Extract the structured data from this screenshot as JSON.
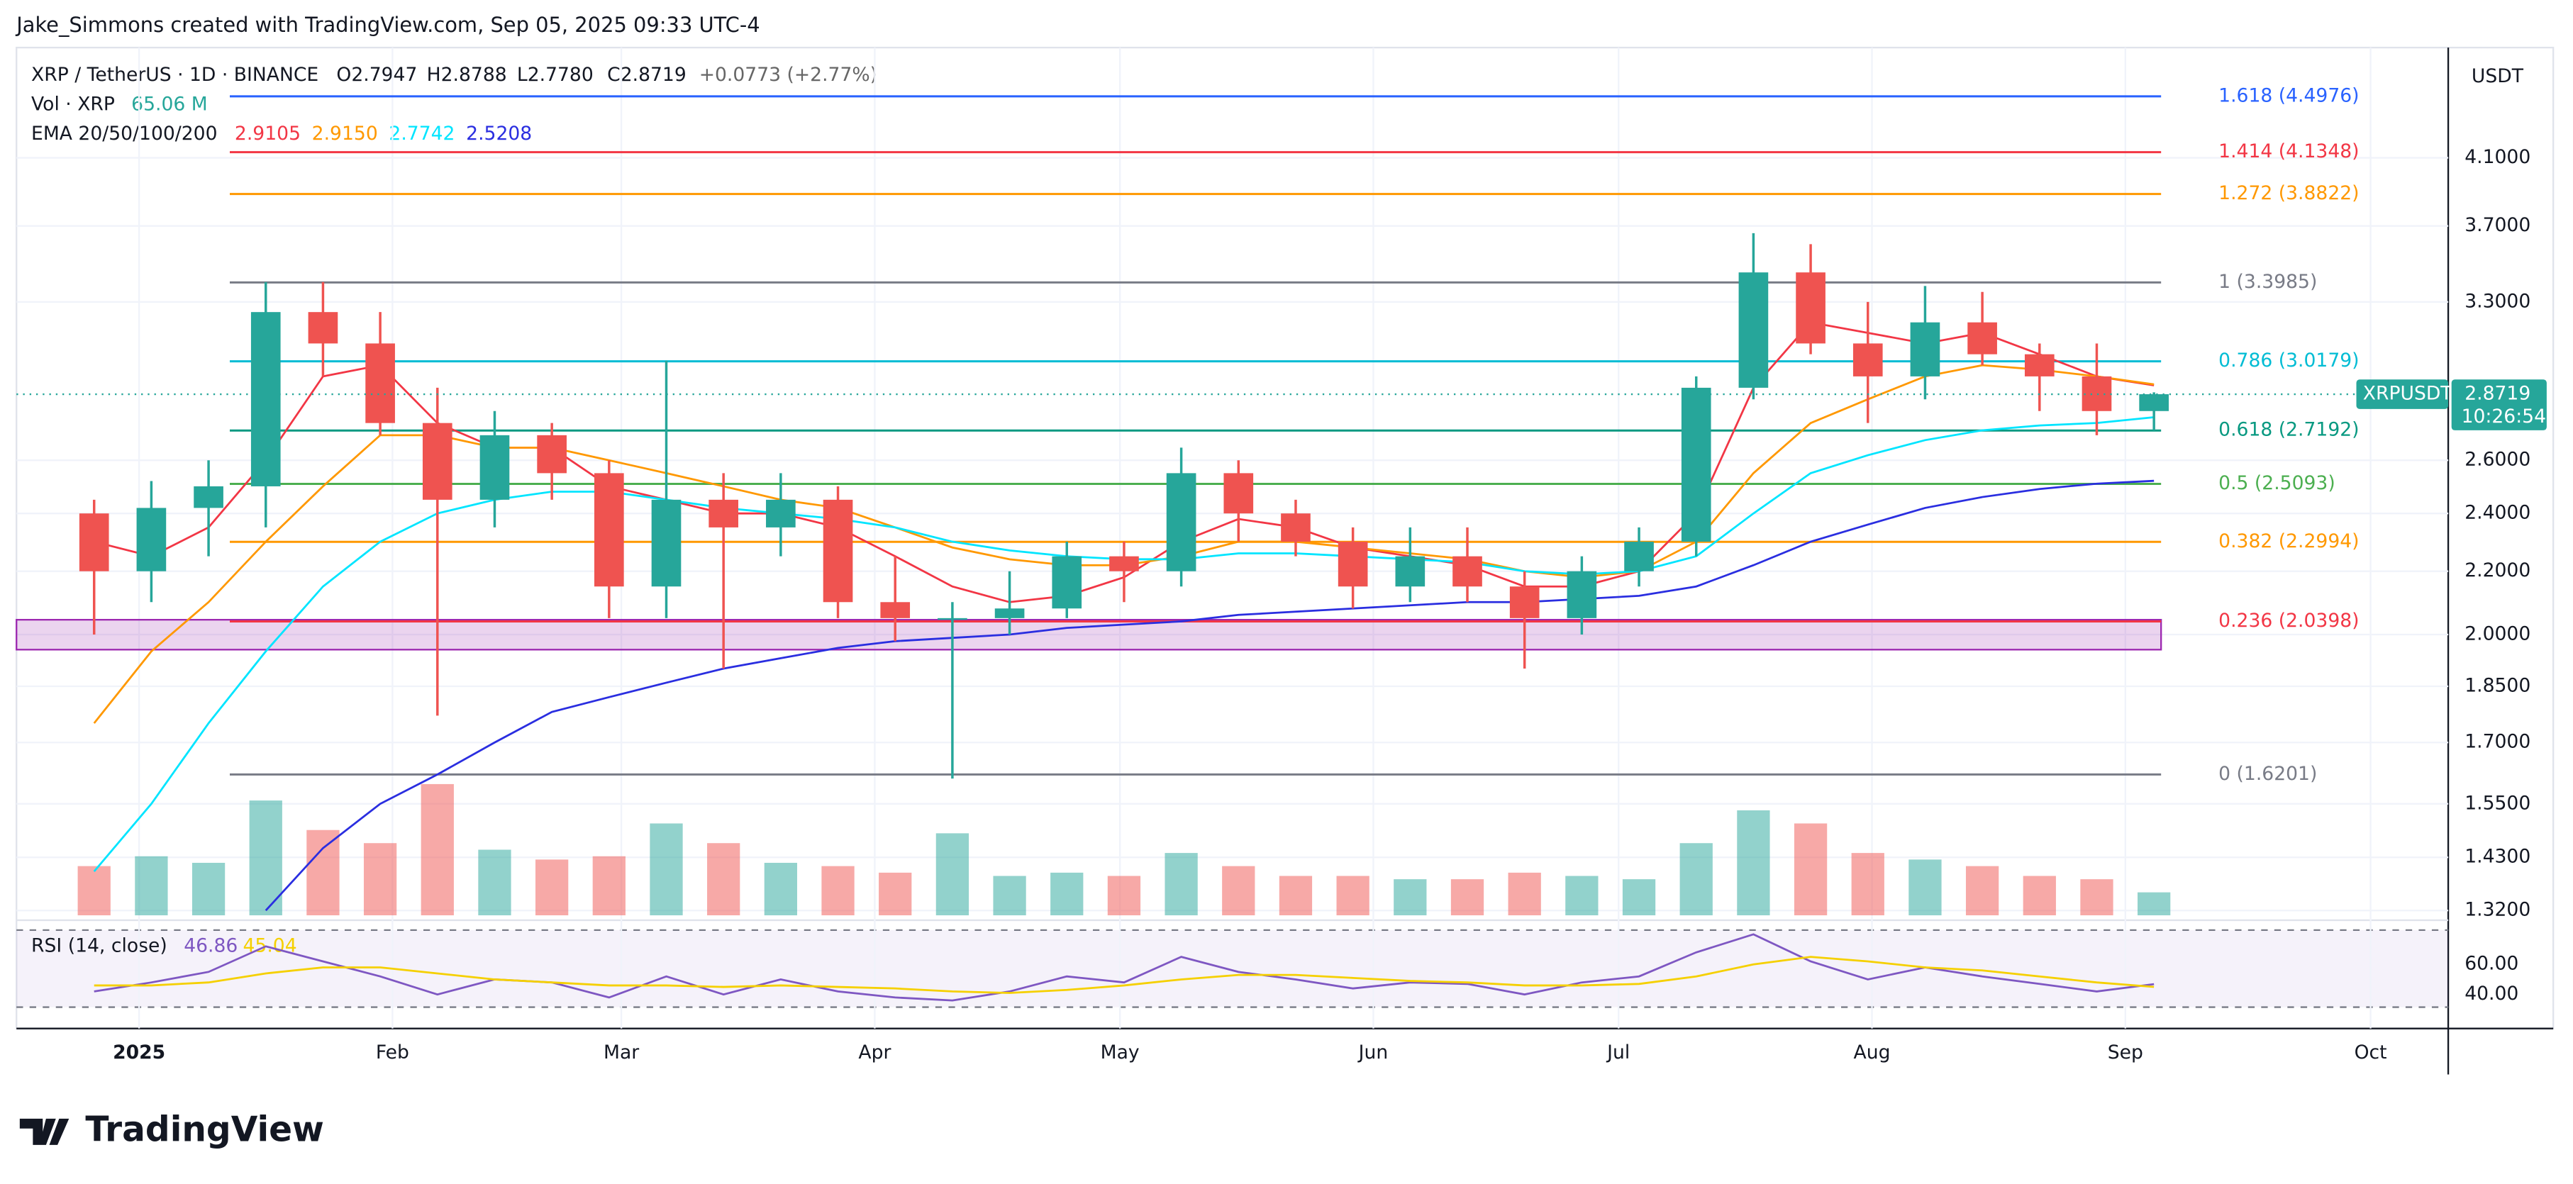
{
  "header": "Jake_Simmons created with TradingView.com, Sep 05, 2025 09:33 UTC-4",
  "brand": "TradingView",
  "chart_data": {
    "type": "candlestick",
    "title": "XRP / TetherUS · 1D · BINANCE",
    "legend": {
      "open": "O2.7947",
      "high": "H2.8788",
      "low": "L2.7780",
      "close": "C2.8719",
      "change": "+0.0773 (+2.77%)",
      "volume_label": "Vol · XRP",
      "volume_value": "65.06 M"
    },
    "currency": "USDT",
    "symbol": "XRPUSDT",
    "last_price": {
      "value": 2.8719,
      "label": "2.8719"
    },
    "countdown": "10:26:54",
    "log_scale": true,
    "up_color": "#26a69a",
    "down_color": "#ef5350",
    "xlim": [
      -15,
      282.5
    ],
    "xticks": [
      {
        "value": 0,
        "label": "2025"
      },
      {
        "value": 31,
        "label": "Feb"
      },
      {
        "value": 59,
        "label": "Mar"
      },
      {
        "value": 90,
        "label": "Apr"
      },
      {
        "value": 120,
        "label": "May"
      },
      {
        "value": 151,
        "label": "Jun"
      },
      {
        "value": 181,
        "label": "Jul"
      },
      {
        "value": 212,
        "label": "Aug"
      },
      {
        "value": 243,
        "label": "Sep"
      },
      {
        "value": 273,
        "label": "Oct"
      }
    ],
    "ylim": [
      1.304,
      4.84
    ],
    "yticks": [
      {
        "value": 4.1,
        "label": "4.1000"
      },
      {
        "value": 3.7,
        "label": "3.7000"
      },
      {
        "value": 3.3,
        "label": "3.3000"
      },
      {
        "value": 2.6,
        "label": "2.6000"
      },
      {
        "value": 2.4,
        "label": "2.4000"
      },
      {
        "value": 2.2,
        "label": "2.2000"
      },
      {
        "value": 2,
        "label": "2.0000"
      },
      {
        "value": 1.85,
        "label": "1.8500"
      },
      {
        "value": 1.7,
        "label": "1.7000"
      },
      {
        "value": 1.55,
        "label": "1.5500"
      },
      {
        "value": 1.43,
        "label": "1.4300"
      },
      {
        "value": 1.32,
        "label": "1.3200"
      }
    ],
    "x": [
      -9,
      -2,
      5,
      12,
      19,
      26,
      33,
      40,
      47,
      54,
      61,
      68,
      75,
      82,
      89,
      96,
      103,
      110,
      117,
      124,
      131,
      138,
      145,
      152,
      159,
      166,
      173,
      180,
      187,
      194,
      201,
      208,
      215,
      222,
      229,
      236,
      243
    ],
    "open": [
      2.4,
      2.2,
      2.42,
      2.5,
      3.25,
      3.1,
      2.75,
      2.45,
      2.7,
      2.55,
      2.15,
      2.45,
      2.35,
      2.45,
      2.1,
      2.05,
      2.05,
      2.08,
      2.25,
      2.2,
      2.55,
      2.4,
      2.3,
      2.15,
      2.25,
      2.15,
      2.05,
      2.2,
      2.3,
      2.9,
      3.45,
      3.1,
      2.95,
      3.2,
      3.05,
      2.95,
      2.8
    ],
    "high": [
      2.45,
      2.52,
      2.6,
      3.4,
      3.4,
      3.25,
      2.9,
      2.8,
      2.75,
      2.6,
      3.02,
      2.55,
      2.55,
      2.5,
      2.25,
      2.1,
      2.2,
      2.3,
      2.3,
      2.65,
      2.6,
      2.45,
      2.35,
      2.35,
      2.35,
      2.2,
      2.25,
      2.35,
      2.95,
      3.66,
      3.6,
      3.3,
      3.38,
      3.35,
      3.1,
      3.1,
      2.88
    ],
    "low": [
      2.0,
      2.1,
      2.25,
      2.35,
      2.95,
      2.7,
      1.77,
      2.35,
      2.45,
      2.05,
      2.05,
      1.9,
      2.25,
      2.05,
      1.98,
      1.61,
      2.0,
      2.05,
      2.1,
      2.15,
      2.3,
      2.25,
      2.08,
      2.1,
      2.1,
      1.9,
      2.0,
      2.15,
      2.25,
      2.85,
      3.05,
      2.75,
      2.85,
      3.0,
      2.8,
      2.7,
      2.72
    ],
    "close": [
      2.2,
      2.42,
      2.5,
      3.25,
      3.1,
      2.75,
      2.45,
      2.7,
      2.55,
      2.15,
      2.45,
      2.35,
      2.45,
      2.1,
      2.05,
      2.05,
      2.08,
      2.25,
      2.2,
      2.55,
      2.4,
      2.3,
      2.15,
      2.25,
      2.15,
      2.05,
      2.2,
      2.3,
      2.9,
      3.45,
      3.1,
      2.95,
      3.2,
      3.05,
      2.95,
      2.8,
      2.8719
    ],
    "volume": {
      "ylim": [
        0,
        4000
      ],
      "values": [
        1500,
        1800,
        1600,
        3500,
        2600,
        2200,
        4000,
        2000,
        1700,
        1800,
        2800,
        2200,
        1600,
        1500,
        1300,
        2500,
        1200,
        1300,
        1200,
        1900,
        1500,
        1200,
        1200,
        1100,
        1100,
        1300,
        1200,
        1100,
        2200,
        3200,
        2800,
        1900,
        1700,
        1500,
        1200,
        1100,
        700
      ]
    },
    "ema_label": "EMA 20/50/100/200",
    "series": [
      {
        "color": "#f23645",
        "legend_value": "2.9105",
        "values": [
          2.3,
          2.25,
          2.35,
          2.6,
          2.95,
          3.0,
          2.75,
          2.65,
          2.65,
          2.5,
          2.45,
          2.4,
          2.4,
          2.35,
          2.25,
          2.15,
          2.1,
          2.12,
          2.18,
          2.3,
          2.38,
          2.35,
          2.28,
          2.25,
          2.22,
          2.15,
          2.15,
          2.2,
          2.4,
          2.9,
          3.2,
          3.15,
          3.1,
          3.15,
          3.05,
          2.95,
          2.9105
        ]
      },
      {
        "color": "#ff9800",
        "legend_value": "2.9150",
        "values": [
          1.75,
          1.95,
          2.1,
          2.3,
          2.5,
          2.7,
          2.7,
          2.65,
          2.65,
          2.6,
          2.55,
          2.5,
          2.45,
          2.42,
          2.35,
          2.28,
          2.24,
          2.22,
          2.22,
          2.25,
          2.3,
          2.3,
          2.28,
          2.26,
          2.24,
          2.2,
          2.18,
          2.2,
          2.3,
          2.55,
          2.75,
          2.85,
          2.95,
          3.0,
          2.98,
          2.95,
          2.915
        ]
      },
      {
        "color": "#00e5ff",
        "legend_value": "2.7742",
        "values": [
          1.4,
          1.55,
          1.75,
          1.95,
          2.15,
          2.3,
          2.4,
          2.45,
          2.48,
          2.48,
          2.45,
          2.42,
          2.4,
          2.38,
          2.35,
          2.3,
          2.27,
          2.25,
          2.24,
          2.24,
          2.26,
          2.26,
          2.25,
          2.24,
          2.23,
          2.2,
          2.19,
          2.2,
          2.25,
          2.4,
          2.55,
          2.62,
          2.68,
          2.72,
          2.74,
          2.75,
          2.7742
        ]
      },
      {
        "color": "#2a2ee0",
        "legend_value": "2.5208",
        "values": [
          null,
          null,
          null,
          1.32,
          1.45,
          1.55,
          1.62,
          1.7,
          1.78,
          1.82,
          1.86,
          1.9,
          1.93,
          1.96,
          1.98,
          1.99,
          2.0,
          2.02,
          2.03,
          2.04,
          2.06,
          2.07,
          2.08,
          2.09,
          2.1,
          2.1,
          2.11,
          2.12,
          2.15,
          2.22,
          2.3,
          2.36,
          2.42,
          2.46,
          2.49,
          2.51,
          2.5208
        ]
      }
    ],
    "fib_levels": [
      {
        "value": 4.4976,
        "label": "1.618 (4.4976)",
        "color": "#2962ff"
      },
      {
        "value": 4.1348,
        "label": "1.414 (4.1348)",
        "color": "#f23645"
      },
      {
        "value": 3.8822,
        "label": "1.272 (3.8822)",
        "color": "#ff9800"
      },
      {
        "value": 3.3985,
        "label": "1 (3.3985)",
        "color": "#787b86"
      },
      {
        "value": 3.0179,
        "label": "0.786 (3.0179)",
        "color": "#00bcd4"
      },
      {
        "value": 2.7192,
        "label": "0.618 (2.7192)",
        "color": "#089981"
      },
      {
        "value": 2.5093,
        "label": "0.5 (2.5093)",
        "color": "#4caf50"
      },
      {
        "value": 2.2994,
        "label": "0.382 (2.2994)",
        "color": "#ff9800"
      },
      {
        "value": 2.0398,
        "label": "0.236 (2.0398)",
        "color": "#f23645"
      },
      {
        "value": 1.6201,
        "label": "0 (1.6201)",
        "color": "#787b86"
      }
    ],
    "support_zone": [
      1.955,
      2.045
    ],
    "rsi": {
      "label": "RSI (14, close)",
      "ylim": [
        25,
        85
      ],
      "yticks": [
        {
          "value": 40,
          "label": "40.00"
        },
        {
          "value": 60,
          "label": "60.00"
        }
      ],
      "series": [
        {
          "color": "#7e57c2",
          "legend_value": "46.86",
          "values": [
            42,
            48,
            55,
            72,
            62,
            52,
            40,
            50,
            48,
            38,
            52,
            40,
            50,
            42,
            38,
            36,
            42,
            52,
            48,
            65,
            55,
            50,
            44,
            48,
            47,
            40,
            48,
            52,
            68,
            80,
            62,
            50,
            58,
            52,
            47,
            42,
            46.86
          ]
        },
        {
          "color": "#f5d000",
          "legend_value": "45.04",
          "values": [
            46,
            46,
            48,
            54,
            58,
            58,
            54,
            50,
            48,
            46,
            46,
            45,
            46,
            45,
            44,
            42,
            41,
            43,
            46,
            50,
            53,
            53,
            51,
            49,
            48,
            46,
            46,
            47,
            52,
            60,
            65,
            62,
            58,
            56,
            52,
            48,
            45.04
          ]
        }
      ]
    }
  }
}
